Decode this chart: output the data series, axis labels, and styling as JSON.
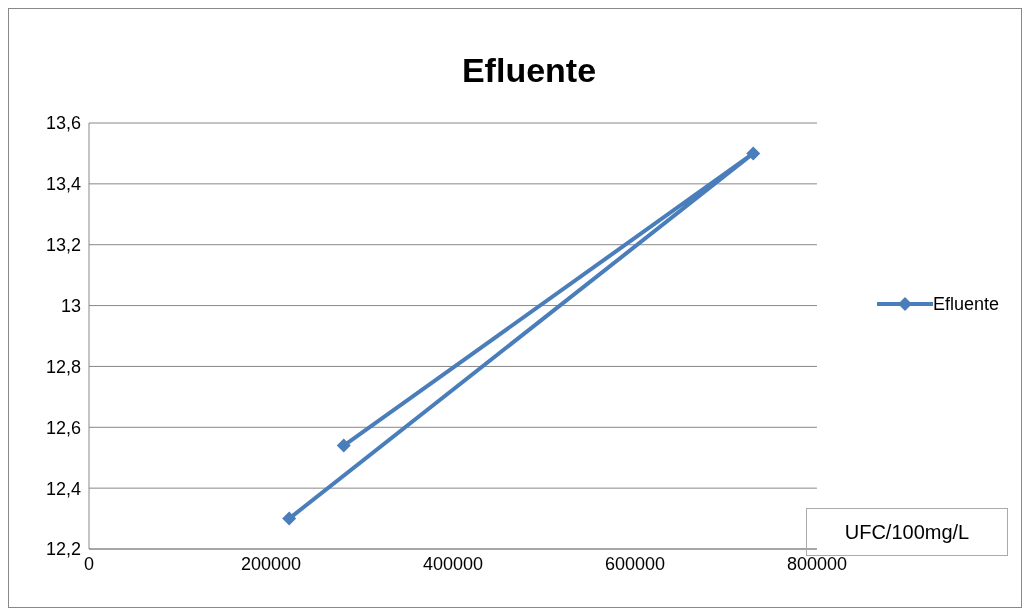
{
  "chart_data": {
    "type": "line",
    "title": "Efluente",
    "xlabel": "UFC/100mg/L",
    "x": [
      280000,
      730000,
      220000
    ],
    "series": [
      {
        "name": "Efluente",
        "color": "#4a7ebb",
        "values": [
          12.54,
          13.5,
          12.3
        ]
      }
    ],
    "xlim": [
      0,
      800000
    ],
    "xticks": [
      0,
      200000,
      400000,
      600000,
      800000
    ],
    "ylim": [
      12.2,
      13.6
    ],
    "yticks": [
      {
        "value": 12.2,
        "label": "12,2"
      },
      {
        "value": 12.4,
        "label": "12,4"
      },
      {
        "value": 12.6,
        "label": "12,6"
      },
      {
        "value": 12.8,
        "label": "12,8"
      },
      {
        "value": 13,
        "label": "13"
      },
      {
        "value": 13.2,
        "label": "13,2"
      },
      {
        "value": 13.4,
        "label": "13,4"
      },
      {
        "value": 13.6,
        "label": "13,6"
      }
    ],
    "grid": "y",
    "legend": "right",
    "marker": "diamond",
    "line_style": "solid"
  }
}
